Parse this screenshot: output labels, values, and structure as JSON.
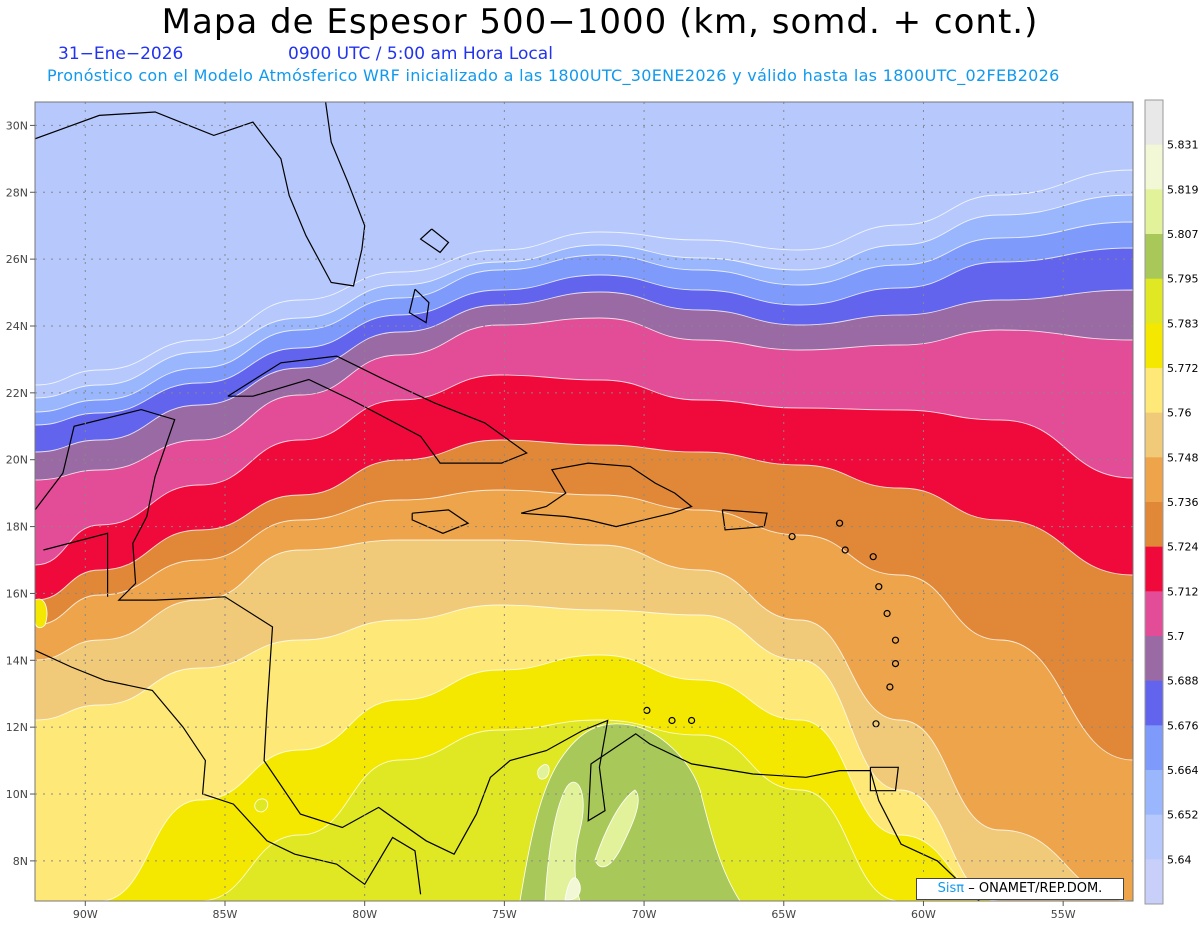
{
  "header": {
    "title": "Mapa de Espesor 500−1000 (km, somd. + cont.)",
    "date": "31−Ene−2026",
    "time": "0900 UTC / 5:00 am Hora Local",
    "subtitle": "Pronóstico con el Modelo Atmósferico WRF inicializado a las 1800UTC_30ENE2026 y válido hasta las  1800UTC_02FEB2026"
  },
  "map": {
    "lat_labels": [
      "30N",
      "28N",
      "26N",
      "24N",
      "22N",
      "20N",
      "18N",
      "16N",
      "14N",
      "12N",
      "10N",
      "8N"
    ],
    "lon_labels": [
      "90W",
      "85W",
      "80W",
      "75W",
      "70W",
      "65W",
      "60W",
      "55W"
    ],
    "lat_range": [
      6.8,
      30.7
    ],
    "lon_range": [
      -91.8,
      -52.5
    ]
  },
  "colorbar": {
    "labels": [
      "5.831",
      "5.819",
      "5.807",
      "5.795",
      "5.783",
      "5.772",
      "5.76",
      "5.748",
      "5.736",
      "5.724",
      "5.712",
      "5.7",
      "5.688",
      "5.676",
      "5.664",
      "5.652",
      "5.64"
    ],
    "colors": [
      "#e8e8e8",
      "#f2f7d6",
      "#e2f29a",
      "#a8c85a",
      "#dfe823",
      "#f4e800",
      "#fde878",
      "#f0ca78",
      "#eea44a",
      "#e08838",
      "#f00a3c",
      "#e34d97",
      "#9a6aa4",
      "#6264ee",
      "#7e9afa",
      "#9ab6fc",
      "#b6c8fc",
      "#c8d0fa"
    ]
  },
  "credit": {
    "brand": "Sisπ",
    "text": "– ONAMET/REP.DOM."
  }
}
